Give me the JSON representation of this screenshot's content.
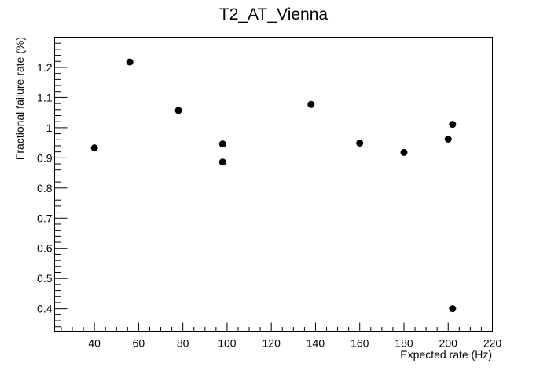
{
  "chart_data": {
    "type": "scatter",
    "title": "T2_AT_Vienna",
    "xlabel": "Expected rate (Hz)",
    "ylabel": "Fractional failure rate (%)",
    "xlim": [
      22,
      220
    ],
    "ylim": [
      0.325,
      1.3
    ],
    "grid": false,
    "legend": "none",
    "marker_color": "#000000",
    "x_ticks": [
      40,
      60,
      80,
      100,
      120,
      140,
      160,
      180,
      200,
      220
    ],
    "x_tick_labels": [
      "40",
      "60",
      "80",
      "100",
      "120",
      "140",
      "160",
      "180",
      "200",
      "220"
    ],
    "y_ticks": [
      0.4,
      0.5,
      0.6,
      0.7,
      0.8,
      0.9,
      1.0,
      1.1,
      1.2
    ],
    "y_tick_labels": [
      "0.4",
      "0.5",
      "0.6",
      "0.7",
      "0.8",
      "0.9",
      "1",
      "1.1",
      "1.2"
    ],
    "points": [
      {
        "x": 40,
        "y": 0.933
      },
      {
        "x": 56,
        "y": 1.218
      },
      {
        "x": 78,
        "y": 1.057
      },
      {
        "x": 98,
        "y": 0.946
      },
      {
        "x": 98,
        "y": 0.886
      },
      {
        "x": 138,
        "y": 1.077
      },
      {
        "x": 160,
        "y": 0.949
      },
      {
        "x": 180,
        "y": 0.918
      },
      {
        "x": 200,
        "y": 0.962
      },
      {
        "x": 202,
        "y": 1.011
      },
      {
        "x": 202,
        "y": 0.4
      }
    ]
  }
}
